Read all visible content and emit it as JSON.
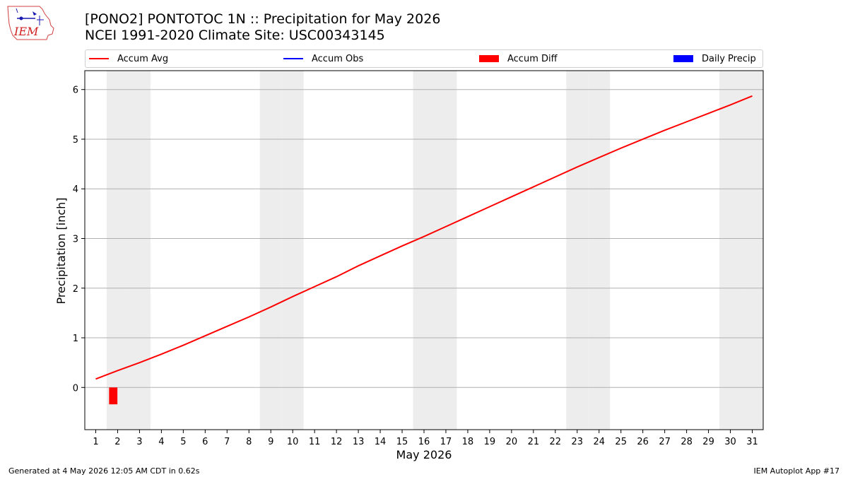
{
  "header": {
    "title_line1": "[PONO2] PONTOTOC 1N :: Precipitation for May 2026",
    "title_line2": "NCEI 1991-2020 Climate Site: USC00343145"
  },
  "logo": {
    "text": "IEM",
    "icon": "iem-logo-icon"
  },
  "footer": {
    "left": "Generated at 4 May 2026 12:05 AM CDT in 0.62s",
    "right": "IEM Autoplot App #17"
  },
  "colors": {
    "accum_avg": "#ff0000",
    "accum_obs": "#0000ff",
    "accum_diff": "#ff0000",
    "daily_precip": "#0000ff",
    "weekend_shade": "#ededed",
    "grid": "#b0b0b0"
  },
  "chart_data": {
    "type": "line",
    "title": "[PONO2] PONTOTOC 1N :: Precipitation for May 2026",
    "subtitle": "NCEI 1991-2020 Climate Site: USC00343145",
    "xlabel": "May 2026",
    "ylabel": "Precipitation [inch]",
    "xlim": [
      0.5,
      31.5
    ],
    "ylim": [
      -0.85,
      6.38
    ],
    "grid": "y",
    "legend_position": "top",
    "x": [
      1,
      2,
      3,
      4,
      5,
      6,
      7,
      8,
      9,
      10,
      11,
      12,
      13,
      14,
      15,
      16,
      17,
      18,
      19,
      20,
      21,
      22,
      23,
      24,
      25,
      26,
      27,
      28,
      29,
      30,
      31
    ],
    "x_tick_labels": [
      "1",
      "2",
      "3",
      "4",
      "5",
      "6",
      "7",
      "8",
      "9",
      "10",
      "11",
      "12",
      "13",
      "14",
      "15",
      "16",
      "17",
      "18",
      "19",
      "20",
      "21",
      "22",
      "23",
      "24",
      "25",
      "26",
      "27",
      "28",
      "29",
      "30",
      "31"
    ],
    "y_ticks": [
      0,
      1,
      2,
      3,
      4,
      5,
      6
    ],
    "y_tick_labels": [
      "0",
      "1",
      "2",
      "3",
      "4",
      "5",
      "6"
    ],
    "weekend_days": [
      2,
      3,
      9,
      10,
      16,
      17,
      23,
      24,
      30,
      31
    ],
    "series": [
      {
        "name": "Accum Avg",
        "kind": "line",
        "color": "#ff0000",
        "x": [
          1,
          2,
          3,
          4,
          5,
          6,
          7,
          8,
          9,
          10,
          11,
          12,
          13,
          14,
          15,
          16,
          17,
          18,
          19,
          20,
          21,
          22,
          23,
          24,
          25,
          26,
          27,
          28,
          29,
          30,
          31
        ],
        "values": [
          0.17,
          0.34,
          0.5,
          0.67,
          0.85,
          1.04,
          1.23,
          1.42,
          1.62,
          1.83,
          2.03,
          2.23,
          2.45,
          2.65,
          2.85,
          3.04,
          3.24,
          3.44,
          3.64,
          3.84,
          4.04,
          4.24,
          4.44,
          4.63,
          4.82,
          5.0,
          5.18,
          5.35,
          5.52,
          5.69,
          5.87
        ]
      },
      {
        "name": "Accum Obs",
        "kind": "line",
        "color": "#0000ff",
        "x": [],
        "values": []
      },
      {
        "name": "Accum Diff",
        "kind": "bar",
        "color": "#ff0000",
        "x": [
          1.8
        ],
        "values": [
          -0.34
        ]
      },
      {
        "name": "Daily Precip",
        "kind": "bar",
        "color": "#0000ff",
        "x": [],
        "values": []
      }
    ]
  }
}
